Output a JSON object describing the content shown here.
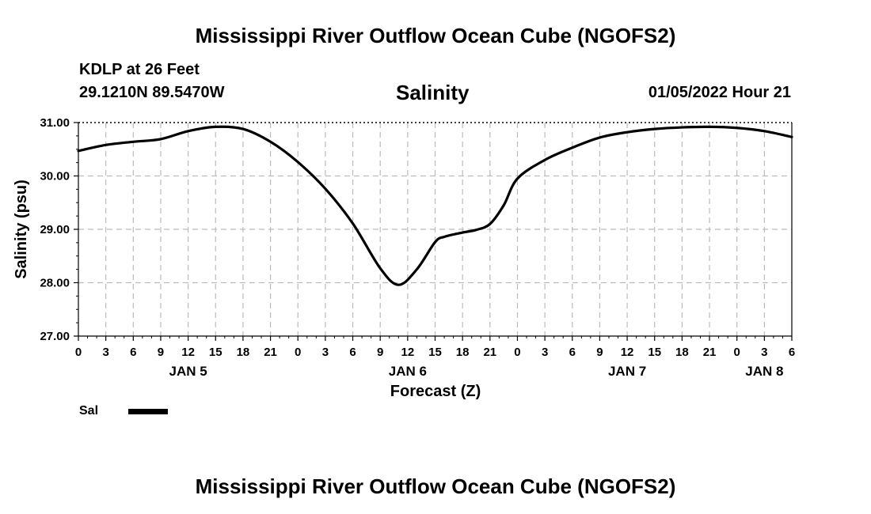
{
  "header": {
    "main_title": "Mississippi River Outflow Ocean Cube (NGOFS2)",
    "station": "KDLP at 26 Feet",
    "coords": "29.1210N  89.5470W",
    "datetime": "01/05/2022 Hour 21",
    "bottom_title": "Mississippi River Outflow Ocean Cube (NGOFS2)"
  },
  "legend": {
    "label": "Sal"
  },
  "colors": {
    "line": "#000000",
    "grid": "#bbbbbb",
    "axis": "#000000"
  },
  "chart_data": {
    "type": "line",
    "title": "Salinity",
    "xlabel": "Forecast (Z)",
    "ylabel": "Salinity (psu)",
    "ylim": [
      27.0,
      31.0
    ],
    "yticks": [
      "27.00",
      "28.00",
      "29.00",
      "30.00",
      "31.00"
    ],
    "xlim_hours": [
      0,
      78
    ],
    "xtick_step_hours": 3,
    "x_tick_labels": [
      "0",
      "3",
      "6",
      "9",
      "12",
      "15",
      "18",
      "21",
      "0",
      "3",
      "6",
      "9",
      "12",
      "15",
      "18",
      "21",
      "0",
      "3",
      "6",
      "9",
      "12",
      "15",
      "18",
      "21",
      "0",
      "3",
      "6"
    ],
    "day_labels": [
      {
        "hour": 12,
        "label": "JAN 5"
      },
      {
        "hour": 36,
        "label": "JAN 6"
      },
      {
        "hour": 60,
        "label": "JAN 7"
      },
      {
        "hour": 75,
        "label": "JAN 8"
      }
    ],
    "grid": true,
    "series": [
      {
        "name": "Sal",
        "x_hours": [
          0,
          3,
          6,
          9,
          12,
          15,
          18,
          21,
          24,
          27,
          30,
          33,
          35,
          37,
          39,
          40,
          42,
          43.5,
          45,
          46.5,
          48,
          51,
          54,
          57,
          60,
          63,
          66,
          69,
          72,
          75,
          78
        ],
        "values": [
          30.47,
          30.58,
          30.64,
          30.69,
          30.84,
          30.92,
          30.88,
          30.64,
          30.26,
          29.76,
          29.11,
          28.27,
          27.96,
          28.25,
          28.76,
          28.86,
          28.94,
          28.99,
          29.1,
          29.45,
          29.95,
          30.3,
          30.53,
          30.72,
          30.82,
          30.88,
          30.91,
          30.92,
          30.9,
          30.84,
          30.73
        ]
      }
    ]
  }
}
